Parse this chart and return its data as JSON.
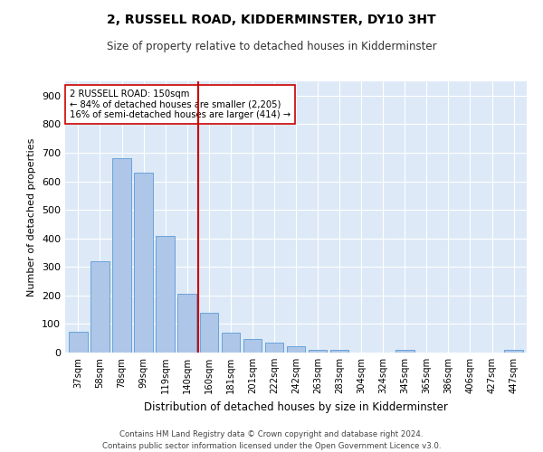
{
  "title": "2, RUSSELL ROAD, KIDDERMINSTER, DY10 3HT",
  "subtitle": "Size of property relative to detached houses in Kidderminster",
  "xlabel": "Distribution of detached houses by size in Kidderminster",
  "ylabel": "Number of detached properties",
  "categories": [
    "37sqm",
    "58sqm",
    "78sqm",
    "99sqm",
    "119sqm",
    "140sqm",
    "160sqm",
    "181sqm",
    "201sqm",
    "222sqm",
    "242sqm",
    "263sqm",
    "283sqm",
    "304sqm",
    "324sqm",
    "345sqm",
    "365sqm",
    "386sqm",
    "406sqm",
    "427sqm",
    "447sqm"
  ],
  "values": [
    72,
    320,
    680,
    630,
    410,
    207,
    140,
    70,
    47,
    35,
    22,
    11,
    8,
    0,
    0,
    9,
    0,
    0,
    0,
    0,
    8
  ],
  "bar_color": "#aec6e8",
  "bar_edge_color": "#5b9bd5",
  "annotation_title": "2 RUSSELL ROAD: 150sqm",
  "annotation_line1": "← 84% of detached houses are smaller (2,205)",
  "annotation_line2": "16% of semi-detached houses are larger (414) →",
  "marker_color": "#cc0000",
  "bg_color": "#dde9f7",
  "footer_line1": "Contains HM Land Registry data © Crown copyright and database right 2024.",
  "footer_line2": "Contains public sector information licensed under the Open Government Licence v3.0.",
  "ylim": [
    0,
    950
  ],
  "yticks": [
    0,
    100,
    200,
    300,
    400,
    500,
    600,
    700,
    800,
    900
  ],
  "red_line_x": 5.5
}
